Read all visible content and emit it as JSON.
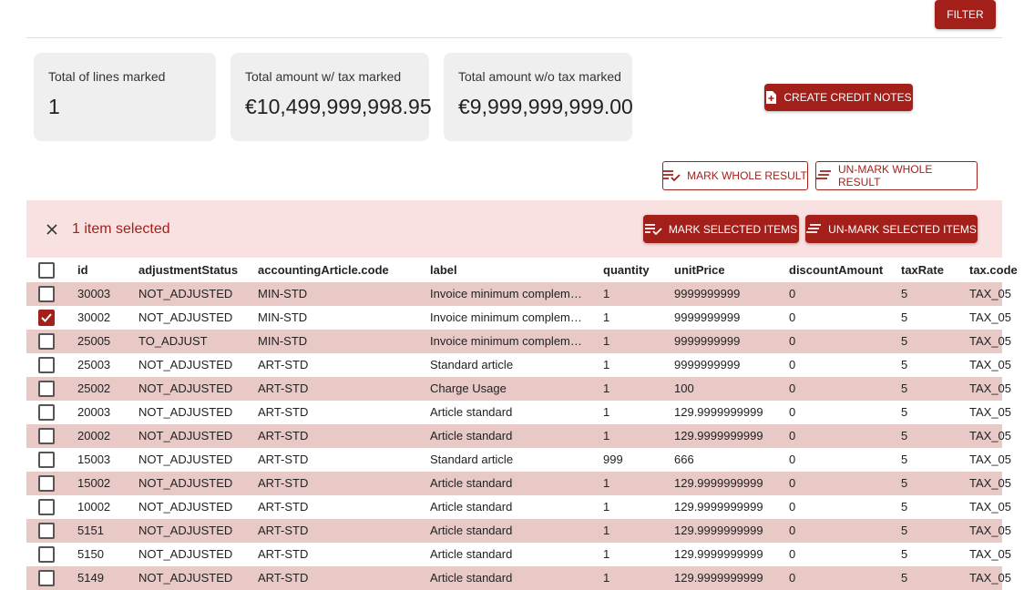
{
  "toolbar": {
    "filter_button": "FILTER"
  },
  "summary": [
    {
      "label": "Total of lines marked",
      "value": "1"
    },
    {
      "label": "Total amount w/ tax marked",
      "value": "€10,499,999,998.95"
    },
    {
      "label": "Total amount w/o tax marked",
      "value": "€9,999,999,999.00"
    }
  ],
  "actions": {
    "create_credit_notes": "CREATE CREDIT NOTES",
    "mark_whole_result": "MARK WHOLE RESULT",
    "unmark_whole_result": "UN-MARK WHOLE RESULT"
  },
  "selection_bar": {
    "text": "1 item selected",
    "mark_selected": "MARK SELECTED ITEMS",
    "unmark_selected": "UN-MARK SELECTED ITEMS"
  },
  "table": {
    "columns": [
      "id",
      "adjustmentStatus",
      "accountingArticle.code",
      "label",
      "quantity",
      "unitPrice",
      "discountAmount",
      "taxRate",
      "tax.code"
    ],
    "rows": [
      [
        "30003",
        "NOT_ADJUSTED",
        "MIN-STD",
        "Invoice minimum complem…",
        "1",
        "9999999999",
        "0",
        "5",
        "TAX_05"
      ],
      [
        "30002",
        "NOT_ADJUSTED",
        "MIN-STD",
        "Invoice minimum complem…",
        "1",
        "9999999999",
        "0",
        "5",
        "TAX_05"
      ],
      [
        "25005",
        "TO_ADJUST",
        "MIN-STD",
        "Invoice minimum complem…",
        "1",
        "9999999999",
        "0",
        "5",
        "TAX_05"
      ],
      [
        "25003",
        "NOT_ADJUSTED",
        "ART-STD",
        "Standard article",
        "1",
        "9999999999",
        "0",
        "5",
        "TAX_05"
      ],
      [
        "25002",
        "NOT_ADJUSTED",
        "ART-STD",
        "Charge Usage",
        "1",
        "100",
        "0",
        "5",
        "TAX_05"
      ],
      [
        "20003",
        "NOT_ADJUSTED",
        "ART-STD",
        "Article standard",
        "1",
        "129.9999999999",
        "0",
        "5",
        "TAX_05"
      ],
      [
        "20002",
        "NOT_ADJUSTED",
        "ART-STD",
        "Article standard",
        "1",
        "129.9999999999",
        "0",
        "5",
        "TAX_05"
      ],
      [
        "15003",
        "NOT_ADJUSTED",
        "ART-STD",
        "Standard article",
        "999",
        "666",
        "0",
        "5",
        "TAX_05"
      ],
      [
        "15002",
        "NOT_ADJUSTED",
        "ART-STD",
        "Article standard",
        "1",
        "129.9999999999",
        "0",
        "5",
        "TAX_05"
      ],
      [
        "10002",
        "NOT_ADJUSTED",
        "ART-STD",
        "Article standard",
        "1",
        "129.9999999999",
        "0",
        "5",
        "TAX_05"
      ],
      [
        "5151",
        "NOT_ADJUSTED",
        "ART-STD",
        "Article standard",
        "1",
        "129.9999999999",
        "0",
        "5",
        "TAX_05"
      ],
      [
        "5150",
        "NOT_ADJUSTED",
        "ART-STD",
        "Article standard",
        "1",
        "129.9999999999",
        "0",
        "5",
        "TAX_05"
      ],
      [
        "5149",
        "NOT_ADJUSTED",
        "ART-STD",
        "Article standard",
        "1",
        "129.9999999999",
        "0",
        "5",
        "TAX_05"
      ]
    ],
    "selected": [
      false,
      true,
      false,
      false,
      false,
      false,
      false,
      false,
      false,
      false,
      false,
      false,
      false
    ]
  }
}
